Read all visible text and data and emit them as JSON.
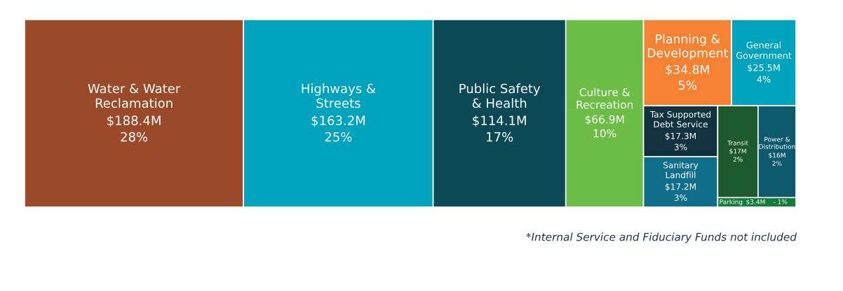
{
  "chart_data": {
    "type": "other",
    "categories": [
      "Water & Water\nReclamation",
      "Highways &\nStreets",
      "Public Safety\n& Health",
      "Culture &\nRecreation",
      "Planning &\nDevelopment",
      "General\nGovernment",
      "Tax Supported\nDebt Service",
      "Sanitary\nLandfill",
      "Transit",
      "Power &\nDistribution",
      "Parking"
    ],
    "values": [
      188.4,
      163.2,
      114.1,
      66.9,
      34.8,
      25.5,
      17.3,
      17.2,
      17,
      16,
      3.4
    ],
    "value_labels": [
      "$188.4M",
      "$163.2M",
      "$114.1M",
      "$66.9M",
      "$34.8M",
      "$25.5M",
      "$17.3M",
      "$17.2M",
      "$17M",
      "$16M",
      "$3.4M"
    ],
    "colors": [
      "#9a4a28",
      "#00a3be",
      "#0b4a54",
      "#6cbd45",
      "#f58233",
      "#00a3be",
      "#12323f",
      "#0f6f8a",
      "#1c5a2e",
      "#0d5a6e",
      "#127d3a"
    ],
    "annotations": [
      {
        "text": "28%"
      },
      {
        "text": "25%"
      },
      {
        "text": "17%"
      },
      {
        "text": "10%"
      },
      {
        "text": "5%"
      },
      {
        "text": "4%"
      },
      {
        "text": "3%"
      },
      {
        "text": "3%"
      },
      {
        "text": "2%"
      },
      {
        "text": "2%"
      },
      {
        "text": "- 1%"
      },
      "*Internal Service and Fiduciary Funds not included"
    ]
  }
}
